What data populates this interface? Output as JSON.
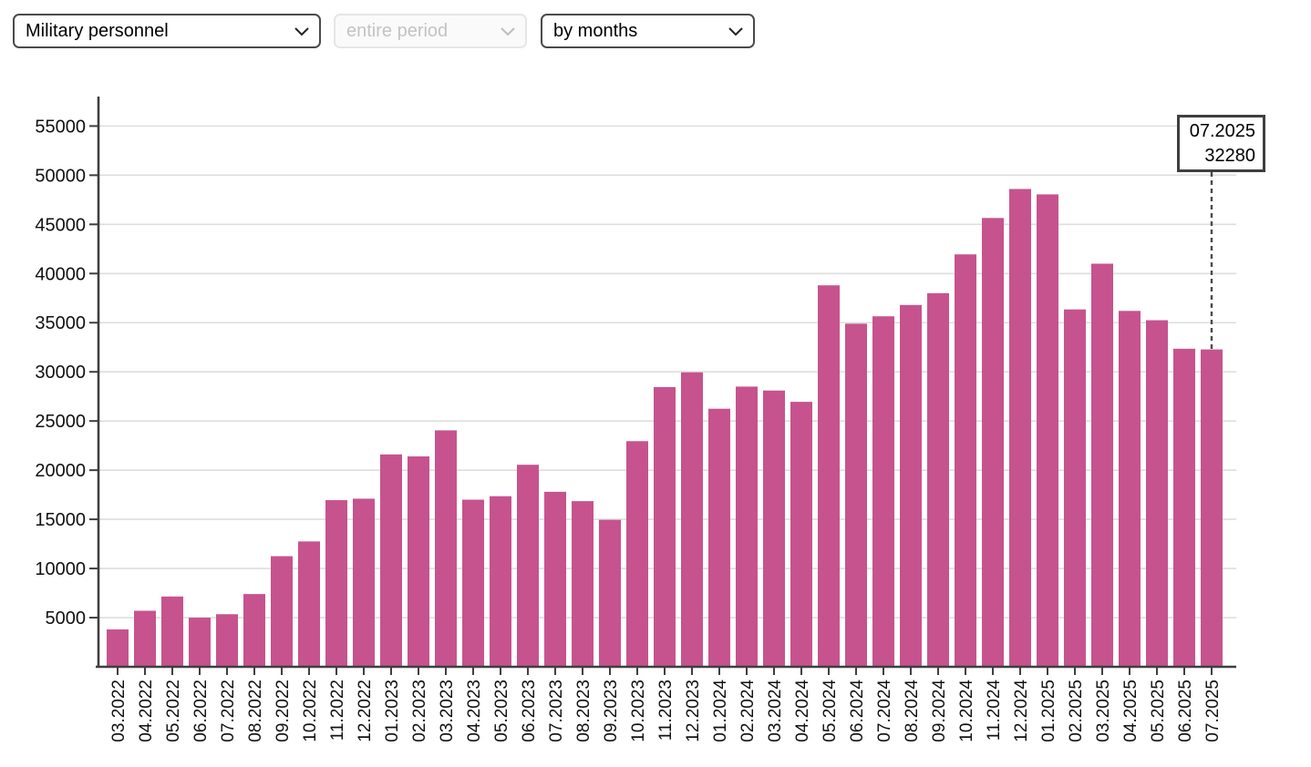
{
  "controls": {
    "metric_select": {
      "value": "Military personnel",
      "disabled": false
    },
    "period_select": {
      "value": "entire period",
      "disabled": true
    },
    "grouping_select": {
      "value": "by months",
      "disabled": false
    }
  },
  "tooltip": {
    "label": "07.2025",
    "value": "32280"
  },
  "colors": {
    "bar": "#c6538d",
    "grid": "#dedede",
    "axis": "#3f3f3f",
    "tick_label": "#111111",
    "dashed_line": "#4a4a4a",
    "tooltip_border": "#3f3f3f"
  },
  "chart_data": {
    "type": "bar",
    "title": "",
    "xlabel": "",
    "ylabel": "",
    "categories": [
      "03.2022",
      "04.2022",
      "05.2022",
      "06.2022",
      "07.2022",
      "08.2022",
      "09.2022",
      "10.2022",
      "11.2022",
      "12.2022",
      "01.2023",
      "02.2023",
      "03.2023",
      "04.2023",
      "05.2023",
      "06.2023",
      "07.2023",
      "08.2023",
      "09.2023",
      "10.2023",
      "11.2023",
      "12.2023",
      "01.2024",
      "02.2024",
      "03.2024",
      "04.2024",
      "05.2024",
      "06.2024",
      "07.2024",
      "08.2024",
      "09.2024",
      "10.2024",
      "11.2024",
      "12.2024",
      "01.2025",
      "02.2025",
      "03.2025",
      "04.2025",
      "05.2025",
      "06.2025",
      "07.2025"
    ],
    "values": [
      3800,
      5700,
      7150,
      5000,
      5350,
      7400,
      11250,
      12750,
      16950,
      17100,
      21600,
      21400,
      24050,
      17000,
      17350,
      20550,
      17800,
      16850,
      14950,
      22950,
      28450,
      29950,
      26250,
      28500,
      28100,
      26950,
      38800,
      34900,
      35650,
      36800,
      38000,
      41950,
      45650,
      48600,
      48050,
      36350,
      41000,
      36200,
      35250,
      32350,
      32280
    ],
    "yticks": [
      5000,
      10000,
      15000,
      20000,
      25000,
      30000,
      35000,
      40000,
      45000,
      50000,
      55000
    ],
    "ylim": [
      0,
      58000
    ],
    "grid": true,
    "legend": false,
    "highlight": {
      "category": "07.2025",
      "value": 32280
    }
  }
}
